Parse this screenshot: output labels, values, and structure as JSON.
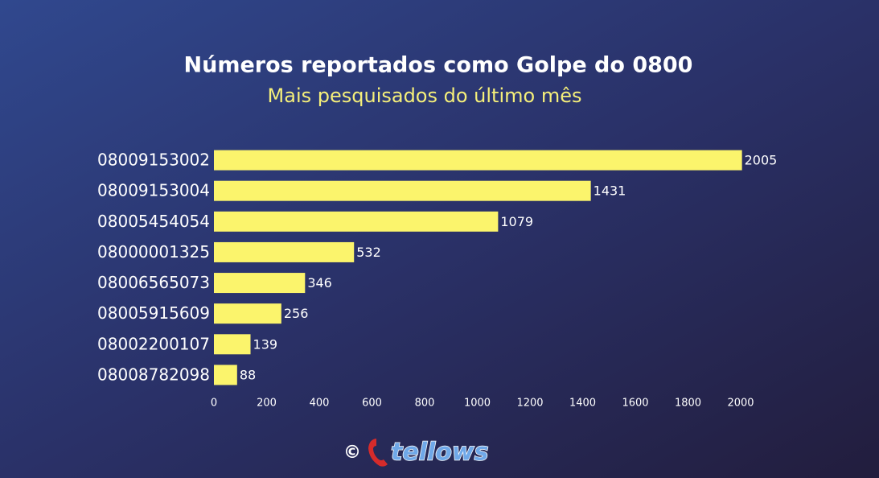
{
  "chart_data": {
    "type": "barh",
    "title": "Números reportados como Golpe do 0800",
    "subtitle": "Mais pesquisados do último mês",
    "categories": [
      "08009153002",
      "08009153004",
      "08005454054",
      "08000001325",
      "08006565073",
      "08005915609",
      "08002200107",
      "08008782098"
    ],
    "values": [
      2005,
      1431,
      1079,
      532,
      346,
      256,
      139,
      88
    ],
    "color": "#fbf46c",
    "xlim": [
      0,
      2000
    ],
    "xticks": [
      0,
      200,
      400,
      600,
      800,
      1000,
      1200,
      1400,
      1600,
      1800,
      2000
    ],
    "grid": false
  },
  "footer": {
    "copyright": "©",
    "brand": "tellows"
  }
}
